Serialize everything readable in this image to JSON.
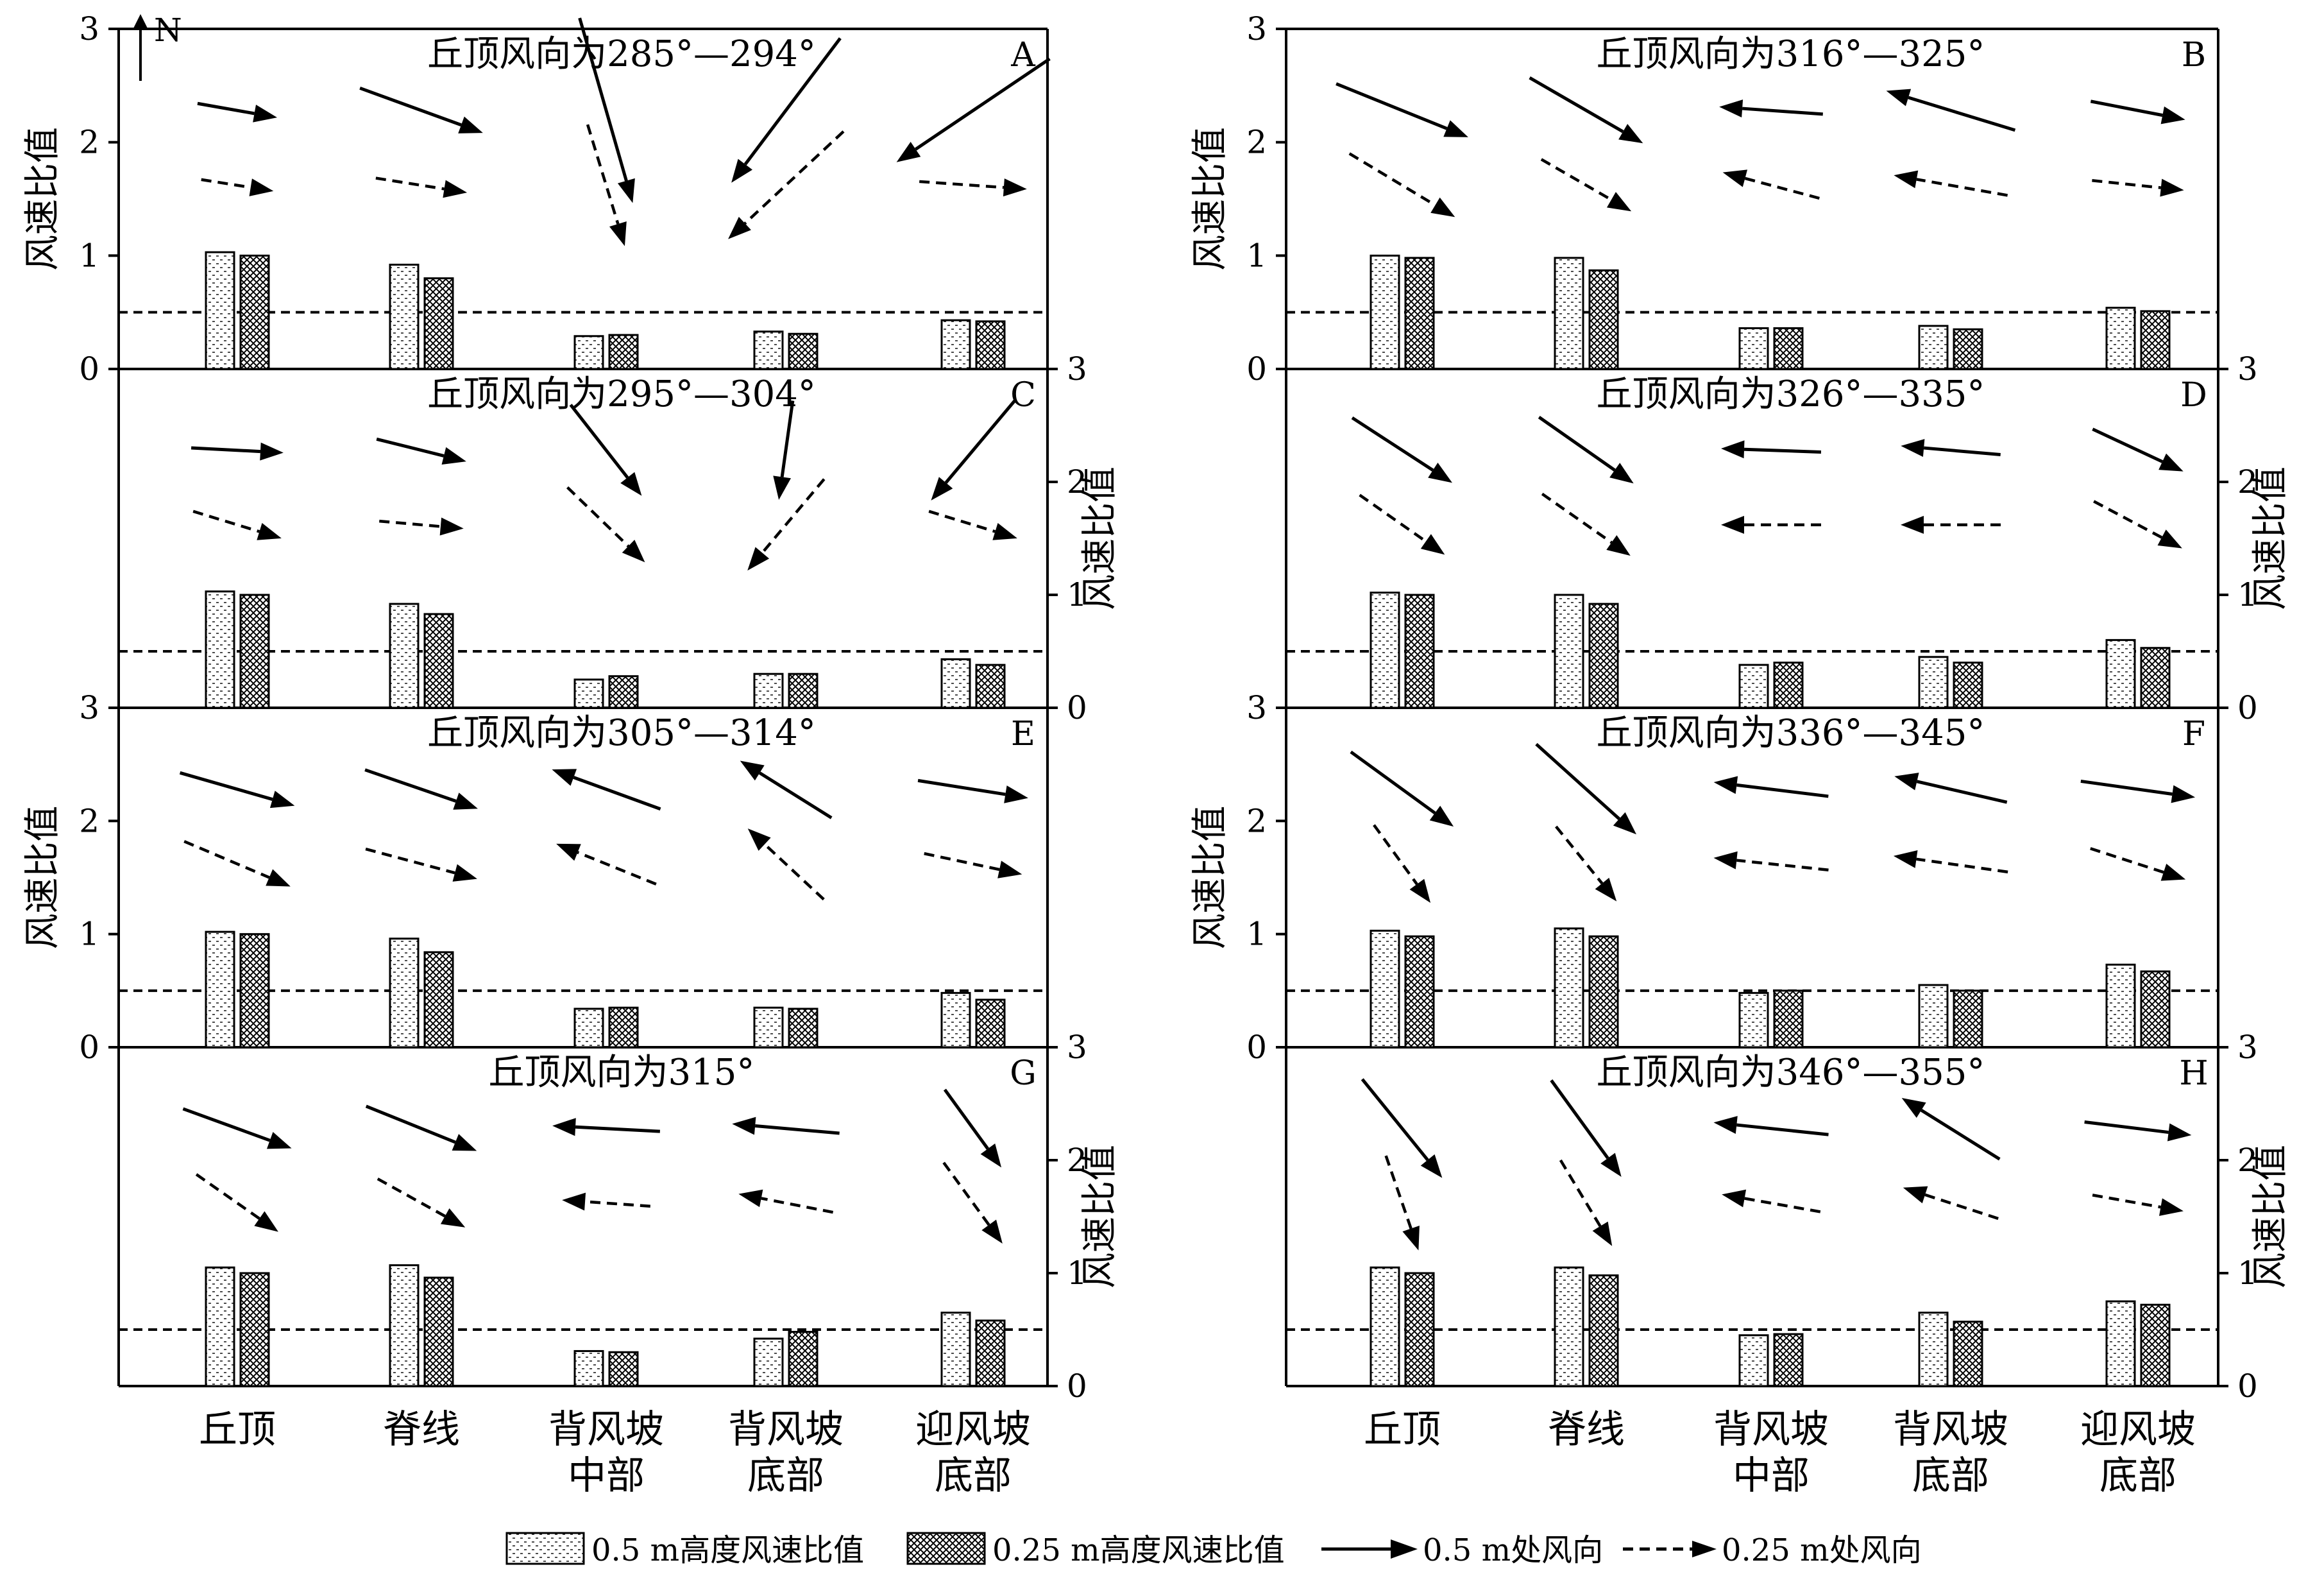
{
  "y_axis_label": "风速比值",
  "y_ticks": [
    0,
    1,
    2,
    3
  ],
  "north_label": "N",
  "categories": [
    "丘顶",
    "脊线",
    "背风坡\n中部",
    "背风坡\n底部",
    "迎风坡\n底部"
  ],
  "legend": {
    "bar_05": "0.5 m高度风速比值",
    "bar_025": "0.25 m高度风速比值",
    "dir_05": "0.5 m处风向",
    "dir_025": "0.25 m处风向"
  },
  "colors": {
    "ink": "#000000",
    "background": "#ffffff"
  },
  "chart_data": [
    {
      "type": "bar",
      "label": "A",
      "title": "丘顶风向为285°—294°",
      "categories": [
        "丘顶",
        "脊线",
        "背风坡中部",
        "背风坡底部",
        "迎风坡底部"
      ],
      "series": [
        {
          "name": "0.5 m高度风速比值",
          "values": [
            1.03,
            0.92,
            0.29,
            0.33,
            0.43
          ]
        },
        {
          "name": "0.25 m高度风速比值",
          "values": [
            1.0,
            0.8,
            0.3,
            0.31,
            0.42
          ]
        }
      ],
      "reference_line": 0.5,
      "ylim": [
        0,
        3
      ],
      "wind_direction_arrows": {
        "0.5 m": [
          [
            100,
            0.21
          ],
          [
            110,
            0.34
          ],
          [
            164,
            0.5
          ],
          [
            217,
            0.47
          ],
          [
            236,
            0.48
          ]
        ],
        "0.25 m": [
          [
            99,
            0.19
          ],
          [
            99,
            0.24
          ],
          [
            163,
            0.33
          ],
          [
            227,
            0.41
          ],
          [
            94,
            0.28
          ]
        ]
      }
    },
    {
      "type": "bar",
      "label": "B",
      "title": "丘顶风向为316°—325°",
      "categories": [
        "丘顶",
        "脊线",
        "背风坡中部",
        "背风坡底部",
        "迎风坡底部"
      ],
      "series": [
        {
          "name": "0.5 m高度风速比值",
          "values": [
            1.0,
            0.98,
            0.36,
            0.38,
            0.54
          ]
        },
        {
          "name": "0.25 m高度风速比值",
          "values": [
            0.98,
            0.87,
            0.36,
            0.35,
            0.51
          ]
        }
      ],
      "reference_line": 0.5,
      "ylim": [
        0,
        3
      ],
      "wind_direction_arrows": {
        "0.5 m": [
          [
            112,
            0.37
          ],
          [
            120,
            0.34
          ],
          [
            274,
            0.27
          ],
          [
            287,
            0.35
          ],
          [
            101,
            0.25
          ]
        ],
        "0.25 m": [
          [
            121,
            0.32
          ],
          [
            120,
            0.27
          ],
          [
            285,
            0.26
          ],
          [
            280,
            0.3
          ],
          [
            96,
            0.24
          ]
        ]
      }
    },
    {
      "type": "bar",
      "label": "C",
      "title": "丘顶风向为295°—304°",
      "categories": [
        "丘顶",
        "脊线",
        "背风坡中部",
        "背风坡底部",
        "迎风坡底部"
      ],
      "series": [
        {
          "name": "0.5 m高度风速比值",
          "values": [
            1.03,
            0.92,
            0.25,
            0.3,
            0.43
          ]
        },
        {
          "name": "0.25 m高度风速比值",
          "values": [
            1.0,
            0.83,
            0.28,
            0.3,
            0.38
          ]
        }
      ],
      "reference_line": 0.5,
      "ylim": [
        0,
        3
      ],
      "wind_direction_arrows": {
        "0.5 m": [
          [
            93,
            0.24
          ],
          [
            104,
            0.24
          ],
          [
            142,
            0.3
          ],
          [
            188,
            0.26
          ],
          [
            220,
            0.34
          ]
        ],
        "0.25 m": [
          [
            107,
            0.24
          ],
          [
            95,
            0.22
          ],
          [
            134,
            0.28
          ],
          [
            220,
            0.31
          ],
          [
            107,
            0.24
          ]
        ]
      }
    },
    {
      "type": "bar",
      "label": "D",
      "title": "丘顶风向为326°—335°",
      "categories": [
        "丘顶",
        "脊线",
        "背风坡中部",
        "背风坡底部",
        "迎风坡底部"
      ],
      "series": [
        {
          "name": "0.5 m高度风速比值",
          "values": [
            1.02,
            1.0,
            0.38,
            0.45,
            0.6
          ]
        },
        {
          "name": "0.25 m高度风速比值",
          "values": [
            1.0,
            0.92,
            0.4,
            0.4,
            0.53
          ]
        }
      ],
      "reference_line": 0.5,
      "ylim": [
        0,
        3
      ],
      "wind_direction_arrows": {
        "0.5 m": [
          [
            123,
            0.31
          ],
          [
            125,
            0.3
          ],
          [
            272,
            0.26
          ],
          [
            275,
            0.26
          ],
          [
            115,
            0.26
          ]
        ],
        "0.25 m": [
          [
            125,
            0.27
          ],
          [
            125,
            0.28
          ],
          [
            270,
            0.26
          ],
          [
            270,
            0.26
          ],
          [
            118,
            0.26
          ]
        ]
      }
    },
    {
      "type": "bar",
      "label": "E",
      "title": "丘顶风向为305°—314°",
      "categories": [
        "丘顶",
        "脊线",
        "背风坡中部",
        "背风坡底部",
        "迎风坡底部"
      ],
      "series": [
        {
          "name": "0.5 m高度风速比值",
          "values": [
            1.02,
            0.96,
            0.34,
            0.35,
            0.48
          ]
        },
        {
          "name": "0.25 m高度风速比值",
          "values": [
            1.0,
            0.84,
            0.35,
            0.34,
            0.42
          ]
        }
      ],
      "reference_line": 0.5,
      "ylim": [
        0,
        3
      ],
      "wind_direction_arrows": {
        "0.5 m": [
          [
            106,
            0.31
          ],
          [
            109,
            0.31
          ],
          [
            290,
            0.3
          ],
          [
            302,
            0.28
          ],
          [
            99,
            0.29
          ]
        ],
        "0.25 m": [
          [
            113,
            0.3
          ],
          [
            105,
            0.3
          ],
          [
            292,
            0.28
          ],
          [
            313,
            0.27
          ],
          [
            102,
            0.26
          ]
        ]
      }
    },
    {
      "type": "bar",
      "label": "F",
      "title": "丘顶风向为336°—345°",
      "categories": [
        "丘顶",
        "脊线",
        "背风坡中部",
        "背风坡底部",
        "迎风坡底部"
      ],
      "series": [
        {
          "name": "0.5 m高度风速比值",
          "values": [
            1.03,
            1.05,
            0.48,
            0.55,
            0.73
          ]
        },
        {
          "name": "0.25 m高度风速比值",
          "values": [
            0.98,
            0.98,
            0.5,
            0.5,
            0.67
          ]
        }
      ],
      "reference_line": 0.5,
      "ylim": [
        0,
        3
      ],
      "wind_direction_arrows": {
        "0.5 m": [
          [
            126,
            0.33
          ],
          [
            132,
            0.35
          ],
          [
            277,
            0.3
          ],
          [
            283,
            0.3
          ],
          [
            98,
            0.3
          ]
        ],
        "0.25 m": [
          [
            144,
            0.25
          ],
          [
            141,
            0.25
          ],
          [
            276,
            0.3
          ],
          [
            278,
            0.3
          ],
          [
            108,
            0.26
          ]
        ]
      }
    },
    {
      "type": "bar",
      "label": "G",
      "title": "丘顶风向为315°",
      "categories": [
        "丘顶",
        "脊线",
        "背风坡中部",
        "背风坡底部",
        "迎风坡底部"
      ],
      "series": [
        {
          "name": "0.5 m高度风速比值",
          "values": [
            1.05,
            1.07,
            0.31,
            0.42,
            0.65
          ]
        },
        {
          "name": "0.25 m高度风速比值",
          "values": [
            1.0,
            0.96,
            0.3,
            0.48,
            0.58
          ]
        }
      ],
      "reference_line": 0.5,
      "ylim": [
        0,
        3
      ],
      "wind_direction_arrows": {
        "0.5 m": [
          [
            110,
            0.3
          ],
          [
            112,
            0.31
          ],
          [
            273,
            0.28
          ],
          [
            275,
            0.28
          ],
          [
            144,
            0.25
          ]
        ],
        "0.25 m": [
          [
            125,
            0.26
          ],
          [
            119,
            0.26
          ],
          [
            274,
            0.23
          ],
          [
            281,
            0.25
          ],
          [
            144,
            0.26
          ]
        ]
      }
    },
    {
      "type": "bar",
      "label": "H",
      "title": "丘顶风向为346°—355°",
      "categories": [
        "丘顶",
        "脊线",
        "背风坡中部",
        "背风坡底部",
        "迎风坡底部"
      ],
      "series": [
        {
          "name": "0.5 m高度风速比值",
          "values": [
            1.05,
            1.05,
            0.45,
            0.65,
            0.75
          ]
        },
        {
          "name": "0.25 m高度风速比值",
          "values": [
            1.0,
            0.98,
            0.46,
            0.57,
            0.72
          ]
        }
      ],
      "reference_line": 0.5,
      "ylim": [
        0,
        3
      ],
      "wind_direction_arrows": {
        "0.5 m": [
          [
            141,
            0.33
          ],
          [
            144,
            0.31
          ],
          [
            276,
            0.3
          ],
          [
            302,
            0.3
          ],
          [
            97,
            0.28
          ]
        ],
        "0.25 m": [
          [
            161,
            0.26
          ],
          [
            149,
            0.26
          ],
          [
            280,
            0.26
          ],
          [
            288,
            0.26
          ],
          [
            100,
            0.24
          ]
        ]
      }
    }
  ]
}
